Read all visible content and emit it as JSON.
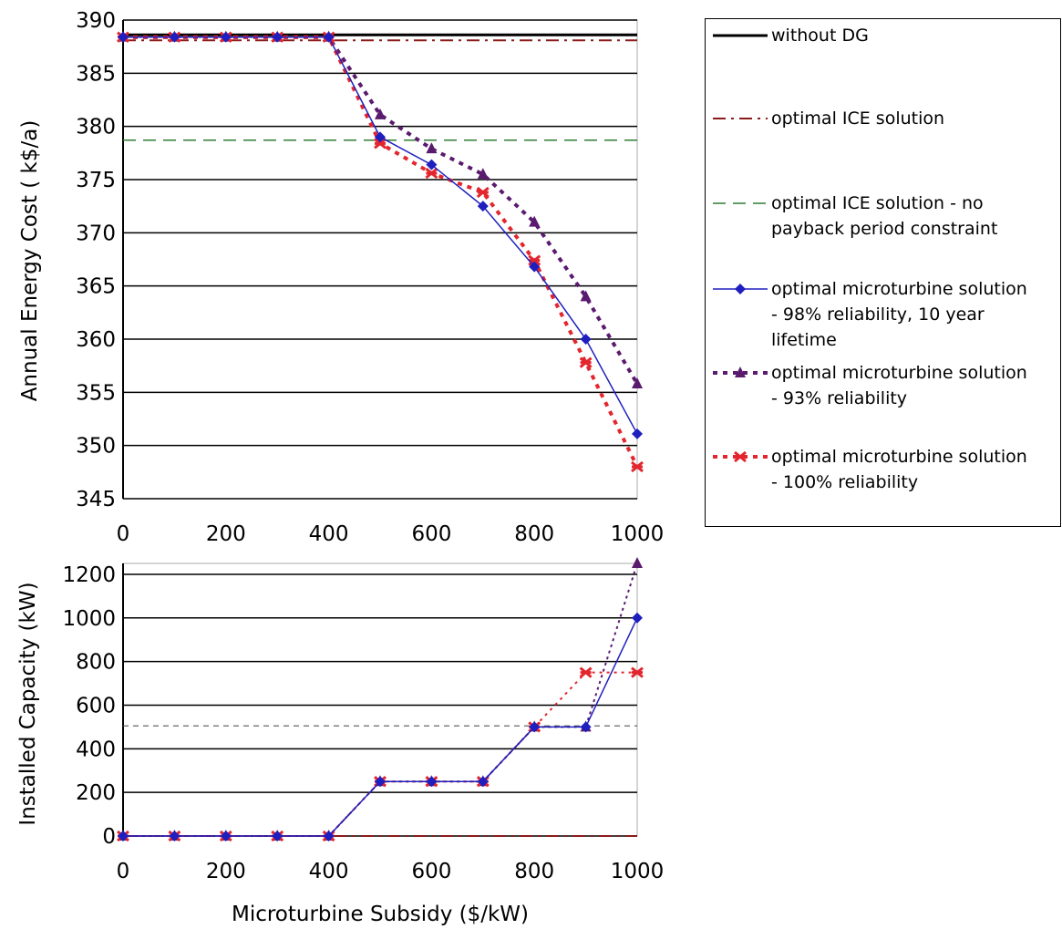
{
  "chart_data": [
    {
      "type": "line",
      "ylabel": "Annual Energy Cost ( k$/a)",
      "xlabel": "",
      "xlim": [
        0,
        1000
      ],
      "ylim": [
        345,
        390
      ],
      "xticks": [
        0,
        200,
        400,
        600,
        800,
        1000
      ],
      "yticks": [
        345,
        350,
        355,
        360,
        365,
        370,
        375,
        380,
        385,
        390
      ],
      "grid": "horizontal",
      "series": [
        {
          "key": "noDG",
          "name": "without DG",
          "color": "#000000",
          "x": [
            0,
            1000
          ],
          "y": [
            388.6,
            388.6
          ]
        },
        {
          "key": "ice",
          "name": "optimal ICE solution",
          "color": "#8B1A1A",
          "x": [
            0,
            1000
          ],
          "y": [
            388.1,
            388.1
          ]
        },
        {
          "key": "iceNoPayback",
          "name": "optimal ICE solution - no payback period constraint",
          "color": "#2E7D32",
          "x": [
            0,
            1000
          ],
          "y": [
            378.7,
            378.7
          ]
        },
        {
          "key": "mt98",
          "name": "optimal microturbine solution - 98% reliability, 10 year lifetime",
          "color": "#1F1FBF",
          "x": [
            0,
            100,
            200,
            300,
            400,
            500,
            600,
            700,
            800,
            900,
            1000
          ],
          "y": [
            388.4,
            388.4,
            388.4,
            388.4,
            388.4,
            379.0,
            376.4,
            372.5,
            366.8,
            360.0,
            351.1
          ]
        },
        {
          "key": "mt93",
          "name": "optimal microturbine solution - 93% reliability",
          "color": "#5A1A6E",
          "x": [
            0,
            100,
            200,
            300,
            400,
            500,
            600,
            700,
            800,
            900,
            1000
          ],
          "y": [
            388.4,
            388.4,
            388.4,
            388.4,
            388.4,
            381.1,
            377.9,
            375.5,
            371.0,
            364.0,
            355.8
          ]
        },
        {
          "key": "mt100",
          "name": "optimal microturbine solution - 100% reliability",
          "color": "#E3262D",
          "x": [
            0,
            100,
            200,
            300,
            400,
            500,
            600,
            700,
            800,
            900,
            1000
          ],
          "y": [
            388.4,
            388.4,
            388.4,
            388.4,
            388.4,
            378.4,
            375.6,
            373.8,
            367.4,
            357.8,
            348.0
          ]
        }
      ]
    },
    {
      "type": "line",
      "ylabel": "Installed Capacity (kW)",
      "xlabel": "Microturbine Subsidy ($/kW)",
      "xlim": [
        0,
        1000
      ],
      "ylim": [
        0,
        1250
      ],
      "xticks": [
        0,
        200,
        400,
        600,
        800,
        1000
      ],
      "yticks": [
        0,
        200,
        400,
        600,
        800,
        1000,
        1200
      ],
      "grid": "horizontal",
      "series": [
        {
          "key": "ice",
          "color": "#8B1A1A",
          "x": [
            0,
            1000
          ],
          "y": [
            0,
            0
          ]
        },
        {
          "key": "iceNoPayback",
          "color": "#555555",
          "x": [
            0,
            1000
          ],
          "y": [
            505,
            505
          ]
        },
        {
          "key": "mt98",
          "color": "#1F1FBF",
          "x": [
            0,
            100,
            200,
            300,
            400,
            500,
            600,
            700,
            800,
            900,
            1000
          ],
          "y": [
            0,
            0,
            0,
            0,
            0,
            250,
            250,
            250,
            500,
            500,
            1000
          ]
        },
        {
          "key": "mt93",
          "color": "#5A1A6E",
          "x": [
            0,
            100,
            200,
            300,
            400,
            500,
            600,
            700,
            800,
            900,
            1000
          ],
          "y": [
            0,
            0,
            0,
            0,
            0,
            250,
            250,
            250,
            500,
            500,
            1250
          ]
        },
        {
          "key": "mt100",
          "color": "#E3262D",
          "x": [
            0,
            100,
            200,
            300,
            400,
            500,
            600,
            700,
            800,
            900,
            1000
          ],
          "y": [
            0,
            0,
            0,
            0,
            0,
            250,
            250,
            250,
            500,
            750,
            750
          ]
        }
      ]
    }
  ],
  "legend": {
    "items": [
      {
        "key": "noDG",
        "lines": [
          "without DG"
        ]
      },
      {
        "key": "ice",
        "lines": [
          "optimal ICE solution"
        ]
      },
      {
        "key": "iceNoPayback",
        "lines": [
          "optimal ICE solution - no",
          "payback period constraint"
        ]
      },
      {
        "key": "mt98",
        "lines": [
          "optimal microturbine solution",
          "- 98% reliability, 10 year",
          "lifetime"
        ]
      },
      {
        "key": "mt93",
        "lines": [
          "optimal microturbine solution",
          "- 93% reliability"
        ]
      },
      {
        "key": "mt100",
        "lines": [
          "optimal microturbine solution",
          "- 100% reliability"
        ]
      }
    ]
  }
}
